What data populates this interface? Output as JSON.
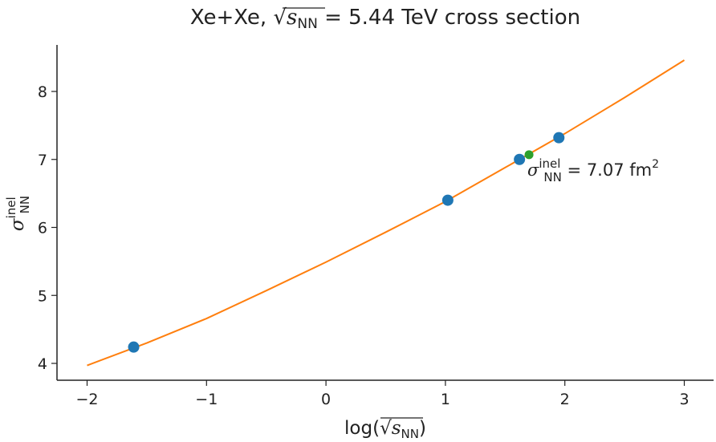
{
  "chart_data": {
    "type": "line",
    "title": {
      "prefix": "Xe+Xe, ",
      "sqrt_s": "s",
      "sqrt_sub": "NN",
      "suffix": " = 5.44 TeV cross section"
    },
    "xlabel": {
      "prefix": "log(",
      "sqrt_s": "s",
      "sqrt_sub": "NN",
      "suffix": ")"
    },
    "ylabel": {
      "base": "σ",
      "sup": "inel",
      "sub": "NN"
    },
    "xlim": [
      -2.25,
      3.25
    ],
    "ylim": [
      3.75,
      8.7
    ],
    "x_ticks": [
      -2,
      -1,
      0,
      1,
      2,
      3
    ],
    "x_tick_labels": [
      "−2",
      "−1",
      "0",
      "1",
      "2",
      "3"
    ],
    "y_ticks": [
      4,
      5,
      6,
      7,
      8
    ],
    "y_tick_labels": [
      "4",
      "5",
      "6",
      "7",
      "8"
    ],
    "series": [
      {
        "kind": "fit-curve",
        "color": "#ff7f0e",
        "x": [
          -2.0,
          -1.5,
          -1.0,
          -0.5,
          0.0,
          0.5,
          1.0,
          1.5,
          2.0,
          2.5,
          3.0
        ],
        "y": [
          3.97,
          4.3,
          4.66,
          5.07,
          5.49,
          5.93,
          6.38,
          6.88,
          7.38,
          7.91,
          8.46
        ]
      },
      {
        "kind": "measurements",
        "color": "#1f77b4",
        "x": [
          -1.61,
          1.02,
          1.62,
          1.95
        ],
        "y": [
          4.24,
          6.4,
          7.0,
          7.32
        ]
      },
      {
        "kind": "interpolated-point",
        "color": "#2ca02c",
        "x": [
          1.7
        ],
        "y": [
          7.07
        ]
      }
    ],
    "annotation": {
      "base": "σ",
      "sup": "inel",
      "sub": "NN",
      "text": " = 7.07 fm",
      "unit_sup": "2"
    },
    "grid": false,
    "legend": "none"
  }
}
